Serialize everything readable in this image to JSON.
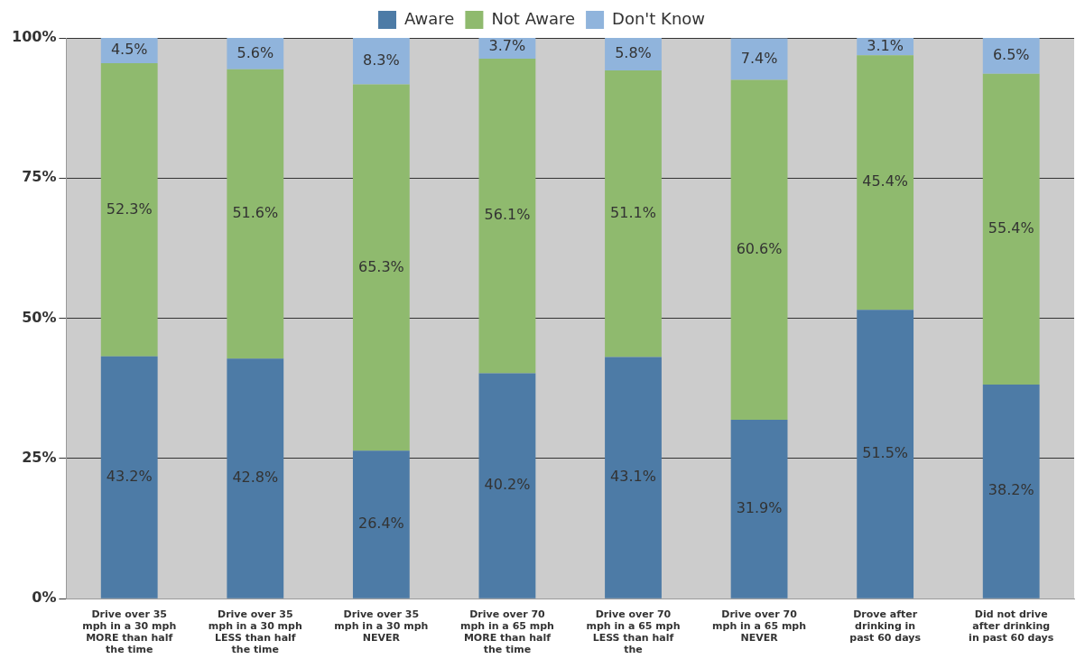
{
  "chart_data": {
    "type": "bar",
    "stacked": true,
    "legend": "top",
    "grid": "y",
    "categories": [
      "Drive over 35 mph in a 30 mph MORE than half the time",
      "Drive over 35 mph in a 30 mph LESS than half the time",
      "Drive over 35 mph in a 30 mph NEVER",
      "Drive over 70 mph in a 65 mph MORE than half the time",
      "Drive over 70 mph in a 65 mph LESS than half the",
      "Drive over 70 mph in a 65 mph NEVER",
      "Drove after drinking in past 60 days",
      "Did not drive after drinking in past 60 days"
    ],
    "series": [
      {
        "name": "Aware",
        "color": "#4d7ba6",
        "values": [
          43.2,
          42.8,
          26.4,
          40.2,
          43.1,
          31.9,
          51.5,
          38.2
        ],
        "value_labels": [
          "43.2%",
          "42.8%",
          "26.4%",
          "40.2%",
          "43.1%",
          "31.9%",
          "51.5%",
          "38.2%"
        ]
      },
      {
        "name": "Not Aware",
        "color": "#8fba6e",
        "values": [
          52.3,
          51.6,
          65.3,
          56.1,
          51.1,
          60.6,
          45.4,
          55.4
        ],
        "value_labels": [
          "52.3%",
          "51.6%",
          "65.3%",
          "56.1%",
          "51.1%",
          "60.6%",
          "45.4%",
          "55.4%"
        ]
      },
      {
        "name": "Don't Know",
        "color": "#90b4dc",
        "values": [
          4.5,
          5.6,
          8.3,
          3.7,
          5.8,
          7.4,
          3.1,
          6.5
        ],
        "value_labels": [
          "4.5%",
          "5.6%",
          "8.3%",
          "3.7%",
          "5.8%",
          "7.4%",
          "3.1%",
          "6.5%"
        ]
      }
    ],
    "ylim": [
      0,
      100
    ],
    "yticks": [
      {
        "value": 0,
        "label": "0%"
      },
      {
        "value": 25,
        "label": "25%"
      },
      {
        "value": 50,
        "label": "50%"
      },
      {
        "value": 75,
        "label": "75%"
      },
      {
        "value": 100,
        "label": "100%"
      }
    ]
  }
}
